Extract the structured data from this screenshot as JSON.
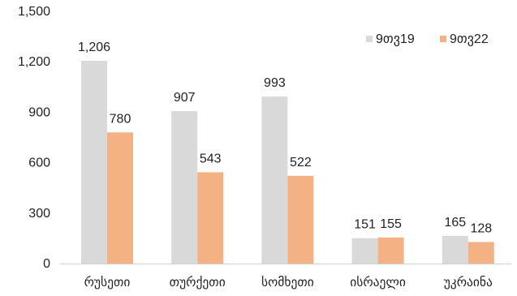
{
  "chart_data": {
    "type": "bar",
    "title": "",
    "xlabel": "",
    "ylabel": "",
    "categories": [
      "რუსეთი",
      "თურქეთი",
      "სომხეთი",
      "ისრაელი",
      "უკრაინა"
    ],
    "series": [
      {
        "name": "9თვ19",
        "values": [
          1206,
          907,
          993,
          151,
          165
        ],
        "color": "#d9d9d9"
      },
      {
        "name": "9თვ22",
        "values": [
          780,
          543,
          522,
          155,
          128
        ],
        "color": "#f4b183"
      }
    ],
    "value_labels": [
      [
        "1,206",
        "907",
        "993",
        "151",
        "165"
      ],
      [
        "780",
        "543",
        "522",
        "155",
        "128"
      ]
    ],
    "ylim": [
      0,
      1500
    ],
    "yticks": [
      0,
      300,
      600,
      900,
      1200,
      1500
    ],
    "ytick_labels": [
      "0",
      "300",
      "600",
      "900",
      "1,200",
      "1,500"
    ],
    "grid": false,
    "legend_position": "top-right"
  }
}
